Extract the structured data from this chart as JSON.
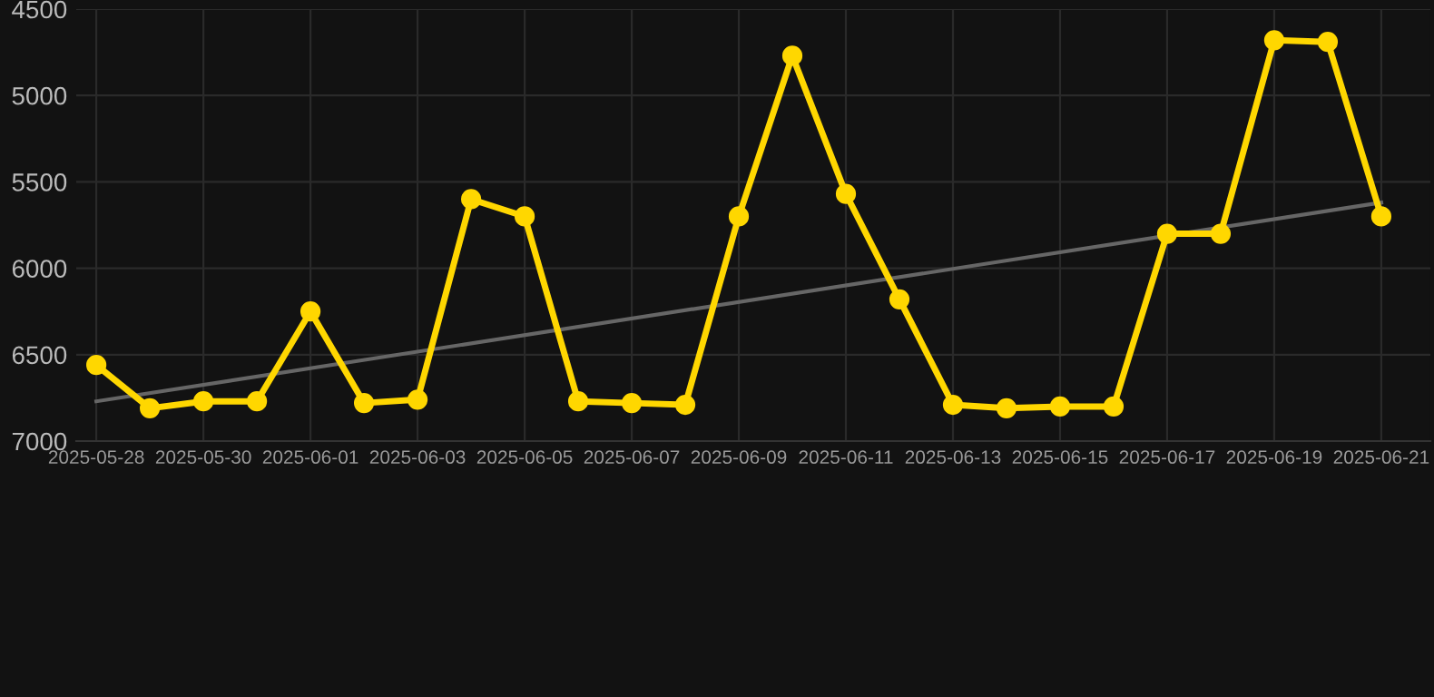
{
  "chart_data": {
    "type": "line",
    "x": [
      "2025-05-28",
      "2025-05-29",
      "2025-05-30",
      "2025-05-31",
      "2025-06-01",
      "2025-06-02",
      "2025-06-03",
      "2025-06-04",
      "2025-06-05",
      "2025-06-06",
      "2025-06-07",
      "2025-06-08",
      "2025-06-09",
      "2025-06-10",
      "2025-06-11",
      "2025-06-12",
      "2025-06-13",
      "2025-06-14",
      "2025-06-15",
      "2025-06-16",
      "2025-06-17",
      "2025-06-18",
      "2025-06-19",
      "2025-06-20",
      "2025-06-21"
    ],
    "series": [
      {
        "color": "#ffd700",
        "marker": "circle",
        "values": [
          6560,
          6810,
          6770,
          6770,
          6250,
          6780,
          6760,
          5600,
          5700,
          6770,
          6780,
          6790,
          5700,
          4770,
          5570,
          6180,
          6790,
          6810,
          6800,
          6800,
          5800,
          5800,
          4680,
          4690,
          5700
        ]
      },
      {
        "type": "line",
        "color": "#666666",
        "marker": "none",
        "x": [
          "2025-05-28",
          "2025-06-21"
        ],
        "values": [
          6770,
          5620
        ]
      }
    ],
    "ylim": [
      7000,
      4500
    ],
    "yticks": [
      4500,
      5000,
      5500,
      6000,
      6500,
      7000
    ],
    "xlim": [
      "2025-05-27T15:00",
      "2025-06-21T22:00"
    ],
    "xticks": [
      {
        "value": "2025-05-28",
        "label": "2025-05-28"
      },
      {
        "value": "2025-05-30",
        "label": "2025-05-30"
      },
      {
        "value": "2025-06-01",
        "label": "2025-06-01"
      },
      {
        "value": "2025-06-03",
        "label": "2025-06-03"
      },
      {
        "value": "2025-06-05",
        "label": "2025-06-05"
      },
      {
        "value": "2025-06-07",
        "label": "2025-06-07"
      },
      {
        "value": "2025-06-09",
        "label": "2025-06-09"
      },
      {
        "value": "2025-06-11",
        "label": "2025-06-11"
      },
      {
        "value": "2025-06-13",
        "label": "2025-06-13"
      },
      {
        "value": "2025-06-15",
        "label": "2025-06-15"
      },
      {
        "value": "2025-06-17",
        "label": "2025-06-17"
      },
      {
        "value": "2025-06-19",
        "label": "2025-06-19"
      },
      {
        "value": "2025-06-21",
        "label": "2025-06-21"
      }
    ],
    "grid": true
  }
}
